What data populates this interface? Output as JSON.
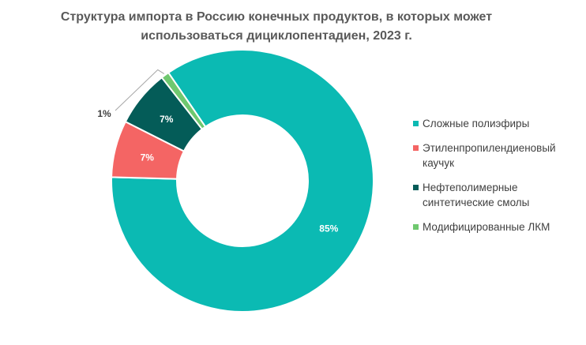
{
  "chart_data": {
    "type": "pie",
    "variant": "donut",
    "title": [
      "Структура импорта в Россию конечных продуктов, в которых может",
      "использоваться дициклопентадиен, 2023 г."
    ],
    "categories": [
      "Сложные полиэфиры",
      "Этиленпропилендиеновый каучук",
      "Нефтеполимерные синтетические смолы",
      "Модифицированные ЛКМ"
    ],
    "legend_lines": [
      [
        "Сложные полиэфиры"
      ],
      [
        "Этиленпропилендиеновый",
        "каучук"
      ],
      [
        "Нефтеполимерные",
        "синтетические смолы"
      ],
      [
        "Модифицированные ЛКМ"
      ]
    ],
    "values": [
      85,
      7,
      7,
      1
    ],
    "data_labels": [
      "85%",
      "7%",
      "7%",
      "1%"
    ],
    "colors": [
      "#0bbab3",
      "#f46564",
      "#045c58",
      "#6fc86f"
    ],
    "legend_position": "right"
  }
}
